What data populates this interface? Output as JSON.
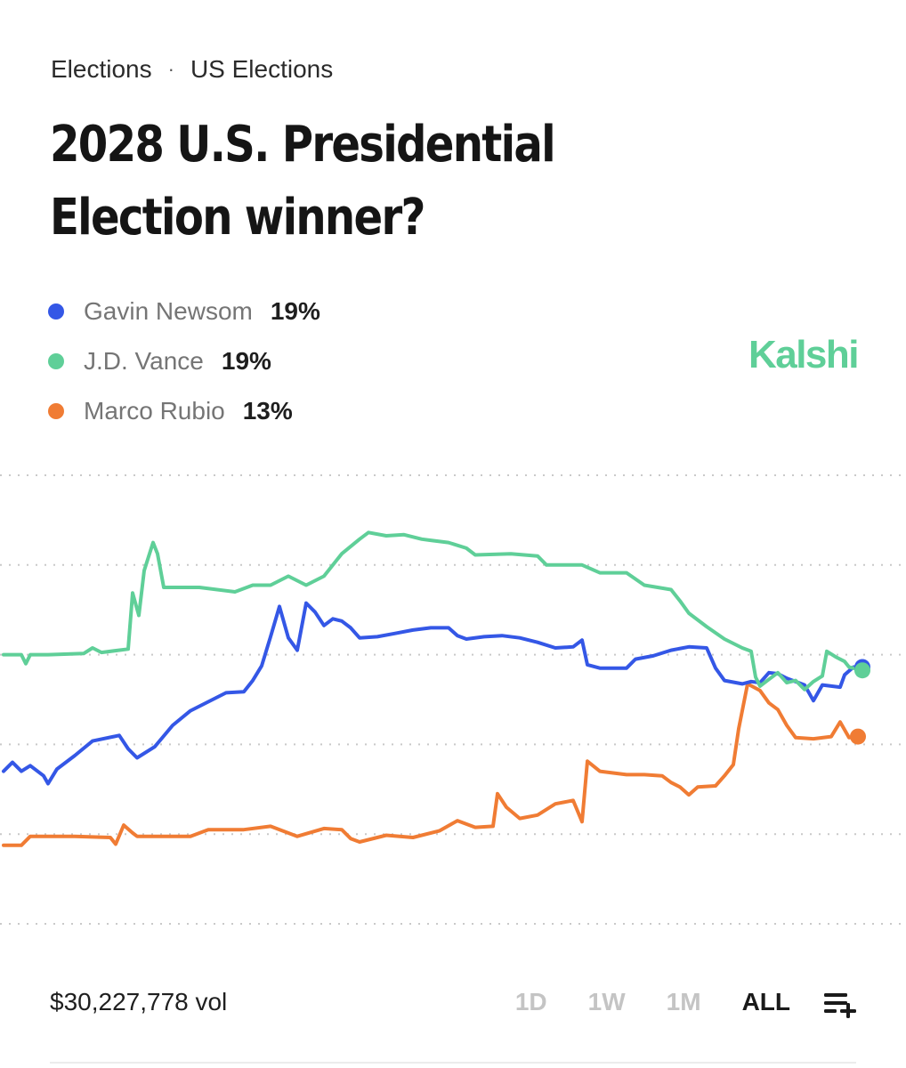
{
  "breadcrumb": {
    "category": "Elections",
    "separator": "·",
    "subcategory": "US Elections"
  },
  "title": "2028 U.S. Presidential Election winner?",
  "brand": "Kalshi",
  "legend": [
    {
      "name": "Gavin Newsom",
      "value": "19%",
      "color": "#3457e6"
    },
    {
      "name": "J.D. Vance",
      "value": "19%",
      "color": "#5fcf98"
    },
    {
      "name": "Marco Rubio",
      "value": "13%",
      "color": "#f07c34"
    }
  ],
  "volume": "$30,227,778 vol",
  "ranges": [
    "1D",
    "1W",
    "1M",
    "ALL"
  ],
  "active_range": "ALL",
  "chart_data": {
    "type": "line",
    "x_range": [
      0,
      100
    ],
    "ylim": [
      0,
      40
    ],
    "y_gridlines": [
      8,
      16,
      24,
      32,
      40
    ],
    "grid": true,
    "series": [
      {
        "name": "J.D. Vance",
        "color": "#5fcf98",
        "points": [
          [
            0,
            24
          ],
          [
            2,
            24
          ],
          [
            2.5,
            23.2
          ],
          [
            3,
            24
          ],
          [
            5,
            24
          ],
          [
            9,
            24.1
          ],
          [
            10,
            24.6
          ],
          [
            11,
            24.2
          ],
          [
            14,
            24.5
          ],
          [
            14.5,
            29.5
          ],
          [
            15.2,
            27.5
          ],
          [
            15.8,
            31.5
          ],
          [
            16.8,
            34
          ],
          [
            17.3,
            33
          ],
          [
            18,
            30
          ],
          [
            22,
            30
          ],
          [
            26,
            29.6
          ],
          [
            28,
            30.2
          ],
          [
            30,
            30.2
          ],
          [
            32,
            31
          ],
          [
            34,
            30.2
          ],
          [
            36,
            31
          ],
          [
            38,
            33
          ],
          [
            40,
            34.3
          ],
          [
            41,
            34.9
          ],
          [
            43,
            34.6
          ],
          [
            45,
            34.7
          ],
          [
            47,
            34.3
          ],
          [
            48,
            34.2
          ],
          [
            50,
            34
          ],
          [
            52,
            33.5
          ],
          [
            53,
            32.9
          ],
          [
            57,
            33
          ],
          [
            60,
            32.8
          ],
          [
            61,
            32
          ],
          [
            65,
            32
          ],
          [
            67,
            31.3
          ],
          [
            70,
            31.3
          ],
          [
            72,
            30.2
          ],
          [
            75,
            29.8
          ],
          [
            76,
            28.8
          ],
          [
            77,
            27.7
          ],
          [
            79,
            26.5
          ],
          [
            81,
            25.4
          ],
          [
            83,
            24.6
          ],
          [
            84,
            24.3
          ],
          [
            84.5,
            22
          ],
          [
            85,
            21.2
          ],
          [
            86,
            21.8
          ],
          [
            87,
            22.4
          ],
          [
            88,
            21.5
          ],
          [
            89,
            21.7
          ],
          [
            90,
            20.9
          ],
          [
            91,
            21.6
          ],
          [
            92,
            22.1
          ],
          [
            92.5,
            24.3
          ],
          [
            93.5,
            23.8
          ],
          [
            94.5,
            23.4
          ],
          [
            95,
            22.9
          ],
          [
            96.5,
            22.6
          ]
        ]
      },
      {
        "name": "Gavin Newsom",
        "color": "#3457e6",
        "points": [
          [
            0,
            13.6
          ],
          [
            1,
            14.4
          ],
          [
            2,
            13.6
          ],
          [
            3,
            14.1
          ],
          [
            4.5,
            13.2
          ],
          [
            5,
            12.5
          ],
          [
            6,
            13.8
          ],
          [
            8,
            15
          ],
          [
            10,
            16.3
          ],
          [
            13,
            16.8
          ],
          [
            14,
            15.6
          ],
          [
            15,
            14.8
          ],
          [
            17,
            15.8
          ],
          [
            19,
            17.7
          ],
          [
            21,
            19
          ],
          [
            23,
            19.8
          ],
          [
            25,
            20.6
          ],
          [
            27,
            20.7
          ],
          [
            28,
            21.7
          ],
          [
            29,
            23
          ],
          [
            30,
            25.6
          ],
          [
            31,
            28.3
          ],
          [
            32,
            25.5
          ],
          [
            33,
            24.4
          ],
          [
            34,
            28.6
          ],
          [
            35,
            27.8
          ],
          [
            36,
            26.6
          ],
          [
            37,
            27.2
          ],
          [
            38,
            27
          ],
          [
            39,
            26.4
          ],
          [
            40,
            25.5
          ],
          [
            42,
            25.6
          ],
          [
            44,
            25.9
          ],
          [
            46,
            26.2
          ],
          [
            48,
            26.4
          ],
          [
            50,
            26.4
          ],
          [
            51,
            25.7
          ],
          [
            52,
            25.4
          ],
          [
            54,
            25.6
          ],
          [
            56,
            25.7
          ],
          [
            58,
            25.5
          ],
          [
            60,
            25.1
          ],
          [
            62,
            24.6
          ],
          [
            64,
            24.7
          ],
          [
            65,
            25.3
          ],
          [
            65.6,
            23.1
          ],
          [
            67,
            22.8
          ],
          [
            70,
            22.8
          ],
          [
            71,
            23.6
          ],
          [
            73,
            23.9
          ],
          [
            75,
            24.4
          ],
          [
            77,
            24.7
          ],
          [
            79,
            24.6
          ],
          [
            80,
            22.8
          ],
          [
            81,
            21.7
          ],
          [
            83,
            21.4
          ],
          [
            84,
            21.6
          ],
          [
            85,
            21.5
          ],
          [
            86,
            22.4
          ],
          [
            87,
            22.3
          ],
          [
            88,
            21.9
          ],
          [
            90,
            21.3
          ],
          [
            91,
            19.9
          ],
          [
            92,
            21.3
          ],
          [
            94,
            21.1
          ],
          [
            94.5,
            22.2
          ],
          [
            95.5,
            22.9
          ],
          [
            96.5,
            22.9
          ]
        ]
      },
      {
        "name": "Marco Rubio",
        "color": "#f07c34",
        "points": [
          [
            0,
            7
          ],
          [
            2,
            7
          ],
          [
            3,
            7.8
          ],
          [
            8,
            7.8
          ],
          [
            12,
            7.7
          ],
          [
            12.6,
            7.1
          ],
          [
            13.5,
            8.8
          ],
          [
            14.5,
            8.1
          ],
          [
            15,
            7.8
          ],
          [
            18,
            7.8
          ],
          [
            21,
            7.8
          ],
          [
            23,
            8.4
          ],
          [
            27,
            8.4
          ],
          [
            30,
            8.7
          ],
          [
            33,
            7.8
          ],
          [
            36,
            8.5
          ],
          [
            38,
            8.4
          ],
          [
            39,
            7.6
          ],
          [
            40,
            7.3
          ],
          [
            43,
            7.9
          ],
          [
            46,
            7.7
          ],
          [
            49,
            8.3
          ],
          [
            51,
            9.2
          ],
          [
            53,
            8.6
          ],
          [
            55,
            8.7
          ],
          [
            55.5,
            11.6
          ],
          [
            56.5,
            10.4
          ],
          [
            58,
            9.4
          ],
          [
            60,
            9.7
          ],
          [
            62,
            10.7
          ],
          [
            64,
            11
          ],
          [
            65,
            9.1
          ],
          [
            65.6,
            14.5
          ],
          [
            67,
            13.6
          ],
          [
            70,
            13.3
          ],
          [
            72,
            13.3
          ],
          [
            74,
            13.2
          ],
          [
            75,
            12.6
          ],
          [
            76,
            12.2
          ],
          [
            77,
            11.5
          ],
          [
            78,
            12.2
          ],
          [
            80,
            12.3
          ],
          [
            81,
            13.2
          ],
          [
            82,
            14.2
          ],
          [
            82.6,
            17.4
          ],
          [
            83.6,
            21.4
          ],
          [
            85,
            20.8
          ],
          [
            86,
            19.7
          ],
          [
            87,
            19.1
          ],
          [
            88,
            17.7
          ],
          [
            89,
            16.6
          ],
          [
            91,
            16.5
          ],
          [
            93,
            16.7
          ],
          [
            94,
            18
          ],
          [
            95,
            16.6
          ],
          [
            96,
            16.7
          ]
        ]
      }
    ]
  }
}
